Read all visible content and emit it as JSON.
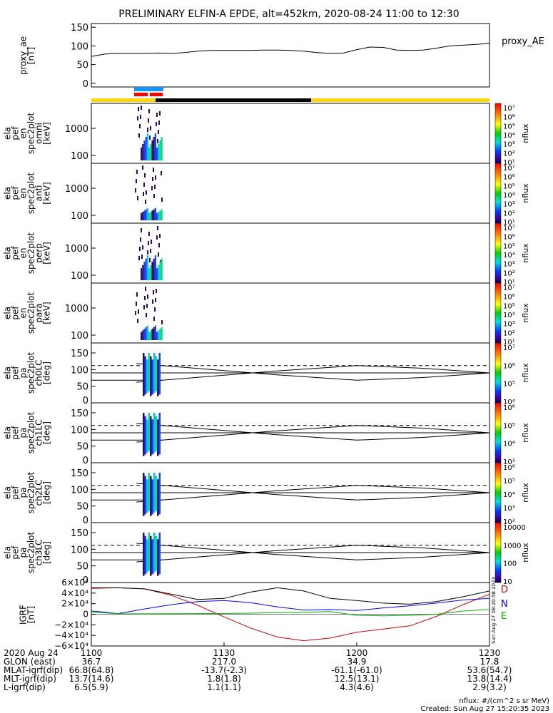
{
  "title": "PRELIMINARY ELFIN-A EPDE, alt=452km, 2020-08-24 11:00 to 12:30",
  "colors": {
    "fgs_blue": "#1e90ff",
    "fgs_red": "#ff0000",
    "bar_yellow": "#ffd700",
    "bar_black": "#000000",
    "Bx": "#d00000",
    "By": "#0000ff",
    "Bz": "#00b000"
  },
  "panels": {
    "ae": {
      "ylabel_lines": [
        "proxy_ae",
        "[nT]"
      ],
      "yticks": [
        "150",
        "100",
        "50",
        "0"
      ],
      "legend": "proxy_AE"
    },
    "spec": [
      {
        "ylabel_lines": [
          "ela",
          "pef",
          "en",
          "spec2plot",
          "omni",
          "[keV]"
        ],
        "yticks": [
          "1000",
          "100"
        ],
        "cbar_ticks": [
          "10⁷",
          "10⁶",
          "10⁵",
          "10⁴",
          "10³",
          "10²",
          "10¹"
        ],
        "cbar_label": "nflux"
      },
      {
        "ylabel_lines": [
          "ela",
          "pef",
          "en",
          "spec2plot",
          "anti",
          "[keV]"
        ],
        "yticks": [
          "1000",
          "100"
        ],
        "cbar_ticks": [
          "10⁷",
          "10⁶",
          "10⁵",
          "10⁴",
          "10³",
          "10²",
          "10¹"
        ],
        "cbar_label": "nflux"
      },
      {
        "ylabel_lines": [
          "ela",
          "pef",
          "en",
          "spec2plot",
          "perp",
          "[keV]"
        ],
        "yticks": [
          "1000",
          "100"
        ],
        "cbar_ticks": [
          "10⁷",
          "10⁶",
          "10⁵",
          "10⁴",
          "10³",
          "10²",
          "10¹"
        ],
        "cbar_label": "nflux"
      },
      {
        "ylabel_lines": [
          "ela",
          "pef",
          "en",
          "spec2plot",
          "para",
          "[keV]"
        ],
        "yticks": [
          "1000",
          "100"
        ],
        "cbar_ticks": [
          "10⁷",
          "10⁶",
          "10⁵",
          "10⁴",
          "10³",
          "10²",
          "10¹"
        ],
        "cbar_label": "nflux"
      }
    ],
    "pa": [
      {
        "ylabel_lines": [
          "ela",
          "pef",
          "pa",
          "spec2plot",
          "ch0LC",
          "[deg]"
        ],
        "yticks": [
          "150",
          "100",
          "50",
          "0"
        ],
        "cbar_ticks": [
          "10⁷",
          "10⁶",
          "10⁵",
          "10⁴"
        ],
        "cbar_label": "nflux"
      },
      {
        "ylabel_lines": [
          "ela",
          "pef",
          "pa",
          "spec2plot",
          "ch1LC",
          "[deg]"
        ],
        "yticks": [
          "150",
          "100",
          "50",
          "0"
        ],
        "cbar_ticks": [
          "10⁶",
          "10⁵",
          "10⁴",
          "10³"
        ],
        "cbar_label": "nflux"
      },
      {
        "ylabel_lines": [
          "ela",
          "pef",
          "pa",
          "spec2plot",
          "ch2LC",
          "[deg]"
        ],
        "yticks": [
          "150",
          "100",
          "50",
          "0"
        ],
        "cbar_ticks": [
          "10⁶",
          "10⁵",
          "10⁴",
          "10³",
          "10²"
        ],
        "cbar_label": "nflux"
      },
      {
        "ylabel_lines": [
          "ela",
          "pef",
          "pa",
          "spec2plot",
          "ch3LC",
          "[deg]"
        ],
        "yticks": [
          "150",
          "100",
          "50",
          "0"
        ],
        "cbar_ticks": [
          "10000",
          "1000",
          "100",
          "10"
        ],
        "cbar_label": "nflux"
      }
    ],
    "igrf": {
      "ylabel_lines": [
        "IGRF",
        "[nT]"
      ],
      "yticks": [
        "6×10⁴",
        "4×10⁴",
        "2×10⁴",
        "0",
        "−2×10⁴",
        "−4×10⁴",
        "−6×10⁴"
      ],
      "legend": [
        "D",
        "N",
        "E"
      ],
      "side_note": "Sun Aug 27 08:20:58 2023"
    }
  },
  "bottom_axis": {
    "row_labels": [
      "2020 Aug 24",
      "GLON (east)",
      "MLAT-igrf(dip)",
      "MLT-igrf(dip)",
      "L-igrf(dip)"
    ],
    "columns": [
      {
        "time": "1100",
        "glon": "36.7",
        "mlat": "66.8(64.8)",
        "mlt": "13.7(14.6)",
        "l": "6.5(5.9)"
      },
      {
        "time": "1130",
        "glon": "217.0",
        "mlat": "-13.7(-2.3)",
        "mlt": "1.8(1.8)",
        "l": "1.1(1.1)"
      },
      {
        "time": "1200",
        "glon": "34.9",
        "mlat": "-61.1(-61.0)",
        "mlt": "12.5(13.1)",
        "l": "4.3(4.6)"
      },
      {
        "time": "1230",
        "glon": "17.8",
        "mlat": "53.6(54.7)",
        "mlt": "13.8(14.4)",
        "l": "2.9(3.2)"
      }
    ]
  },
  "footer": {
    "units": "nflux: #/(cm^2 s sr MeV)",
    "created": "Created: Sun Aug 27 15:20:35 2023"
  },
  "chart_data": [
    {
      "type": "line",
      "series": [
        {
          "name": "proxy_AE",
          "x": [
            11.0,
            11.05,
            11.1,
            11.15,
            11.2,
            11.25,
            11.3,
            11.35,
            11.4,
            11.45,
            11.5,
            11.55,
            11.6,
            11.65,
            11.7,
            11.75,
            11.8,
            11.85,
            11.9,
            11.95,
            12.0,
            12.05,
            12.1,
            12.15,
            12.2,
            12.25,
            12.3,
            12.35,
            12.4,
            12.45,
            12.5
          ],
          "y": [
            72,
            78,
            80,
            80,
            80,
            81,
            80,
            82,
            86,
            88,
            88,
            88,
            88,
            89,
            89,
            88,
            86,
            82,
            80,
            81,
            90,
            97,
            96,
            89,
            88,
            89,
            94,
            100,
            102,
            104,
            107
          ]
        }
      ],
      "xlabel": "",
      "ylabel": "proxy_ae [nT]",
      "xlim": [
        11.0,
        12.5
      ],
      "ylim": [
        -10,
        160
      ]
    },
    {
      "type": "line",
      "series": [
        {
          "name": "loss cone",
          "x": [
            11.17,
            11.3,
            11.5,
            11.7,
            12.0,
            12.25,
            12.5
          ],
          "y": [
            62,
            70,
            83,
            96,
            112,
            104,
            90
          ]
        },
        {
          "name": "anti loss cone",
          "x": [
            11.17,
            11.3,
            11.5,
            11.7,
            12.0,
            12.25,
            12.5
          ],
          "y": [
            118,
            110,
            97,
            84,
            68,
            76,
            90
          ]
        }
      ],
      "xlabel": "",
      "ylabel": "[deg]",
      "xlim": [
        11.0,
        12.5
      ],
      "ylim": [
        0,
        180
      ]
    },
    {
      "type": "line",
      "series": [
        {
          "name": "D",
          "x": [
            11.0,
            11.1,
            11.2,
            11.3,
            11.4,
            11.5,
            11.6,
            11.7,
            11.8,
            11.9,
            12.0,
            12.1,
            12.2,
            12.3,
            12.4,
            12.5
          ],
          "y": [
            49000,
            50000,
            48000,
            36000,
            17000,
            -5000,
            -26000,
            -43000,
            -50000,
            -45000,
            -34000,
            -28000,
            -22000,
            -4000,
            18000,
            38000
          ]
        },
        {
          "name": "N",
          "x": [
            11.0,
            11.05,
            11.1,
            11.2,
            11.3,
            11.4,
            11.5,
            11.6,
            11.7,
            11.8,
            11.9,
            12.0,
            12.1,
            12.2,
            12.3,
            12.4,
            12.5
          ],
          "y": [
            6000,
            4000,
            1000,
            10000,
            18000,
            24000,
            26000,
            22000,
            14000,
            8000,
            9000,
            7000,
            12000,
            16000,
            21000,
            27000,
            30000
          ]
        },
        {
          "name": "E",
          "x": [
            11.0,
            11.1,
            11.2,
            11.3,
            11.4,
            11.5,
            11.6,
            11.7,
            11.8,
            11.9,
            12.0,
            12.1,
            12.2,
            12.3,
            12.4,
            12.5
          ],
          "y": [
            4000,
            1000,
            800,
            1000,
            1200,
            1500,
            2000,
            3000,
            3800,
            5000,
            -2000,
            -3000,
            -2000,
            0,
            6000,
            9000
          ]
        },
        {
          "name": "total",
          "x": [
            11.0,
            11.1,
            11.2,
            11.3,
            11.4,
            11.5,
            11.6,
            11.7,
            11.8,
            11.9,
            12.0,
            12.1,
            12.2,
            12.3,
            12.4,
            12.5
          ],
          "y": [
            50000,
            50000,
            48000,
            38000,
            28000,
            30000,
            42000,
            50000,
            44000,
            30000,
            26000,
            21000,
            19000,
            24000,
            33000,
            44000
          ]
        }
      ],
      "xlabel": "",
      "ylabel": "IGRF [nT]",
      "xlim": [
        11.0,
        12.5
      ],
      "ylim": [
        -60000,
        60000
      ]
    }
  ]
}
